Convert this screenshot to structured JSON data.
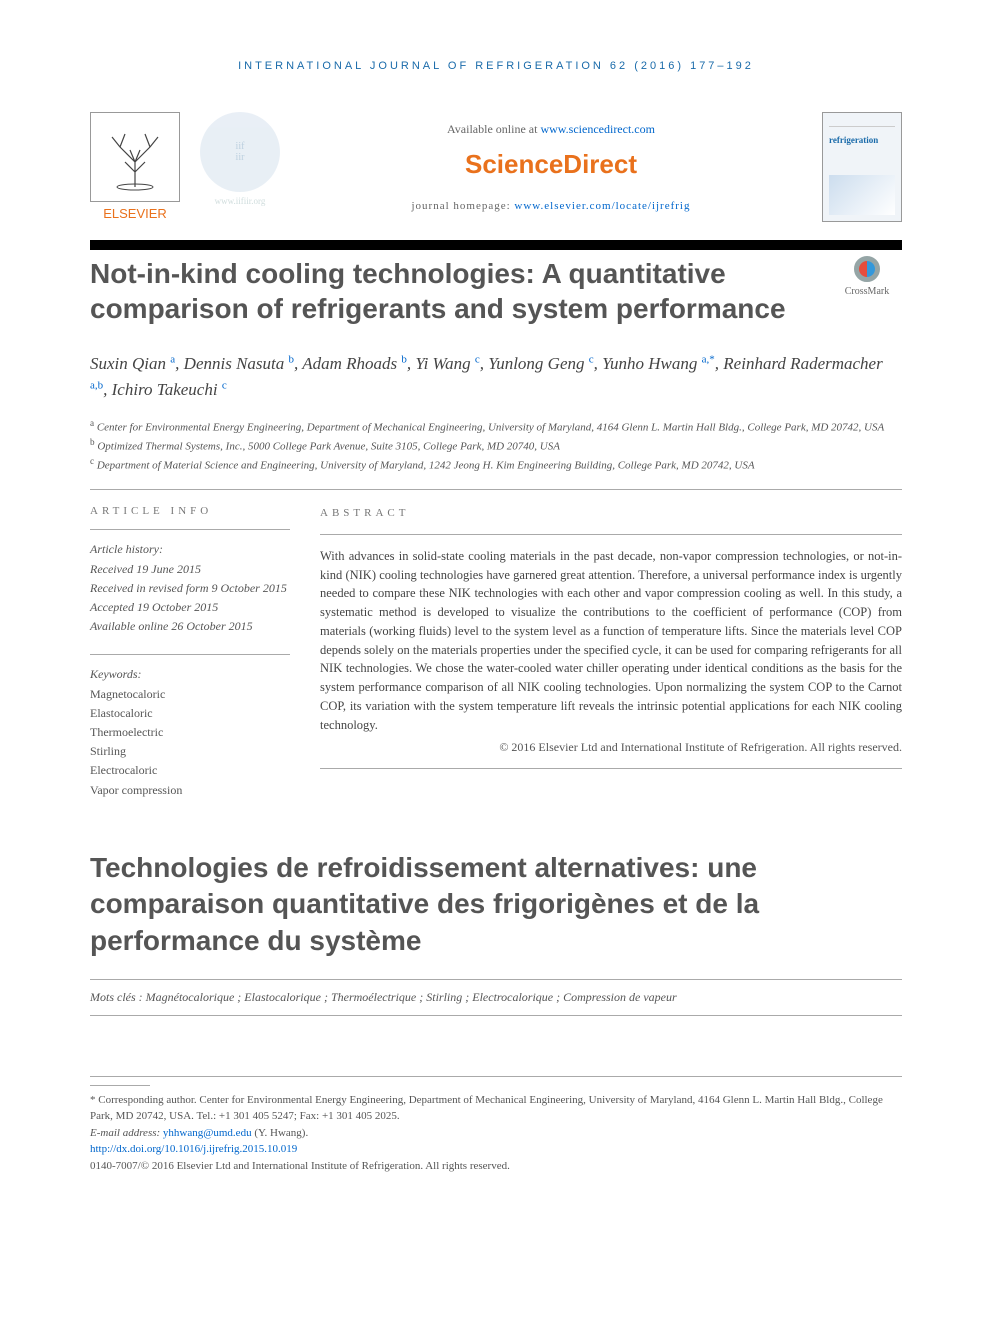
{
  "running_head": "international journal of refrigeration 62 (2016) 177–192",
  "masthead": {
    "elsevier": "ELSEVIER",
    "iifiir_top": "iif",
    "iifiir_bot": "iir",
    "iifiir_url": "www.iifiir.org",
    "available_prefix": "Available online at ",
    "available_url": "www.sciencedirect.com",
    "sd_logo": "ScienceDirect",
    "homepage_prefix": "journal homepage: ",
    "homepage_url": "www.elsevier.com/locate/ijrefrig",
    "cover_journal": "refrigeration"
  },
  "title": "Not-in-kind cooling technologies: A quantitative comparison of refrigerants and system performance",
  "crossmark": "CrossMark",
  "authors_html": "Suxin Qian <sup>a</sup>, Dennis Nasuta <sup>b</sup>, Adam Rhoads <sup>b</sup>, Yi Wang <sup>c</sup>, Yunlong Geng <sup>c</sup>, Yunho Hwang <sup>a,*</sup>, Reinhard Radermacher <sup>a,b</sup>, Ichiro Takeuchi <sup>c</sup>",
  "affiliations": [
    {
      "sup": "a",
      "text": "Center for Environmental Energy Engineering, Department of Mechanical Engineering, University of Maryland, 4164 Glenn L. Martin Hall Bldg., College Park, MD 20742, USA"
    },
    {
      "sup": "b",
      "text": "Optimized Thermal Systems, Inc., 5000 College Park Avenue, Suite 3105, College Park, MD 20740, USA"
    },
    {
      "sup": "c",
      "text": "Department of Material Science and Engineering, University of Maryland, 1242 Jeong H. Kim Engineering Building, College Park, MD 20742, USA"
    }
  ],
  "article_info_label": "ARTICLE INFO",
  "abstract_label": "ABSTRACT",
  "history": {
    "label": "Article history:",
    "received": "Received 19 June 2015",
    "revised": "Received in revised form 9 October 2015",
    "accepted": "Accepted 19 October 2015",
    "online": "Available online 26 October 2015"
  },
  "keywords": {
    "label": "Keywords:",
    "list": [
      "Magnetocaloric",
      "Elastocaloric",
      "Thermoelectric",
      "Stirling",
      "Electrocaloric",
      "Vapor compression"
    ]
  },
  "abstract": "With advances in solid-state cooling materials in the past decade, non-vapor compression technologies, or not-in-kind (NIK) cooling technologies have garnered great attention. Therefore, a universal performance index is urgently needed to compare these NIK technologies with each other and vapor compression cooling as well. In this study, a systematic method is developed to visualize the contributions to the coefficient of performance (COP) from materials (working fluids) level to the system level as a function of temperature lifts. Since the materials level COP depends solely on the materials properties under the specified cycle, it can be used for comparing refrigerants for all NIK technologies. We chose the water-cooled water chiller operating under identical conditions as the basis for the system performance comparison of all NIK cooling technologies. Upon normalizing the system COP to the Carnot COP, its variation with the system temperature lift reveals the intrinsic potential applications for each NIK cooling technology.",
  "copyright": "© 2016 Elsevier Ltd and International Institute of Refrigeration. All rights reserved.",
  "french_title": "Technologies de refroidissement alternatives: une comparaison quantitative des frigorigènes et de la performance du système",
  "mots_cles": "Mots clés : Magnétocalorique ; Elastocalorique ; Thermoélectrique ; Stirling ; Electrocalorique ; Compression de vapeur",
  "footer": {
    "corresponding": "* Corresponding author. Center for Environmental Energy Engineering, Department of Mechanical Engineering, University of Maryland, 4164 Glenn L. Martin Hall Bldg., College Park, MD 20742, USA. Tel.: +1 301 405 5247; Fax: +1 301 405 2025.",
    "email_label": "E-mail address: ",
    "email": "yhhwang@umd.edu",
    "email_name": " (Y. Hwang).",
    "doi": "http://dx.doi.org/10.1016/j.ijrefrig.2015.10.019",
    "issn_line": "0140-7007/© 2016 Elsevier Ltd and International Institute of Refrigeration. All rights reserved."
  }
}
